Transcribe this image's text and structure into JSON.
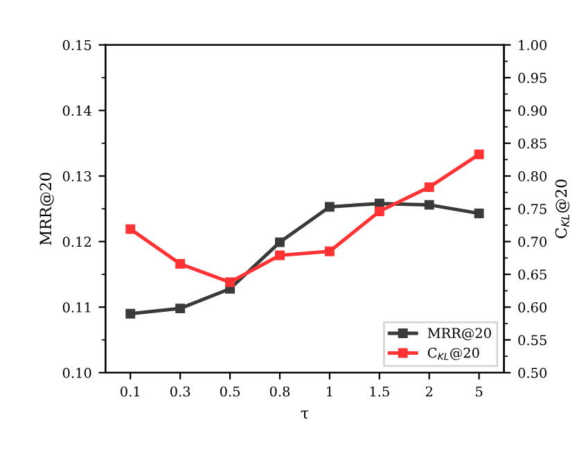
{
  "chart_data": {
    "type": "line",
    "xlabel": "τ",
    "ylabel": "MRR@20",
    "y2label": "C$_{KL}$@20",
    "categories": [
      "0.1",
      "0.3",
      "0.5",
      "0.8",
      "1",
      "1.5",
      "2",
      "5"
    ],
    "series": [
      {
        "name": "MRR@20",
        "color": "#3a3a3a",
        "values": [
          0.109,
          0.1098,
          0.1128,
          0.1199,
          0.1253,
          0.1258,
          0.1256,
          0.1243
        ]
      },
      {
        "name": "C$_{KL}$@20",
        "color": "#ff3333",
        "axis": "y2",
        "values": [
          0.719,
          0.666,
          0.638,
          0.679,
          0.685,
          0.746,
          0.783,
          0.833
        ]
      }
    ],
    "ylim": [
      0.1,
      0.15
    ],
    "yticks": [
      {
        "value": 0.1,
        "label": "0.10"
      },
      0.11,
      0.12,
      0.13,
      0.14,
      0.15
    ],
    "y2lim": [
      0.5,
      1.0
    ],
    "y2ticks": [
      {
        "value": 0.5,
        "label": "0.50"
      },
      0.55,
      {
        "value": 0.6,
        "label": "0.60"
      },
      0.65,
      {
        "value": 0.7,
        "label": "0.70"
      },
      0.75,
      {
        "value": 0.8,
        "label": "0.80"
      },
      0.85,
      {
        "value": 0.9,
        "label": "0.90"
      },
      0.95,
      {
        "value": 1.0,
        "label": "1.00"
      }
    ],
    "marker": "square",
    "line_style": "solid",
    "grid": false,
    "legend": "bottom right"
  }
}
